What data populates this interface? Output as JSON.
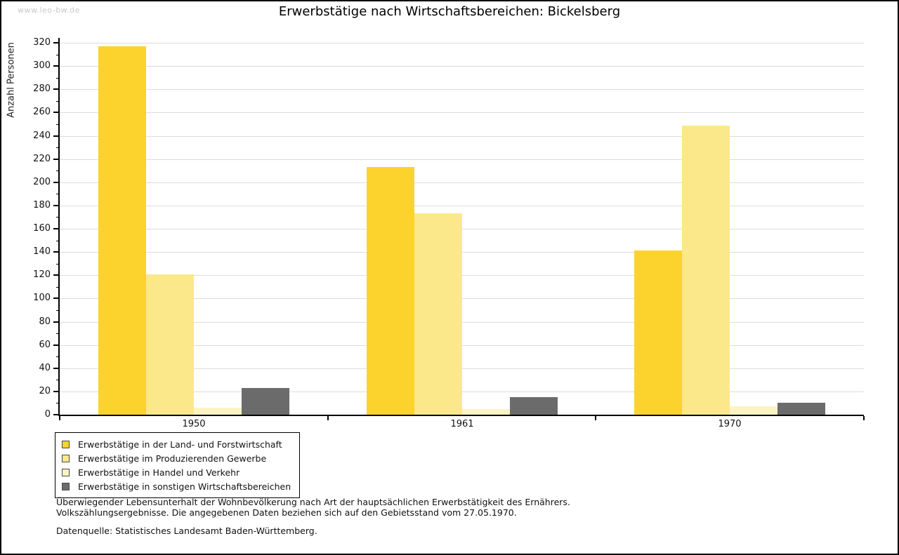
{
  "watermark": "www.leo-bw.de",
  "title": "Erwerbstätige nach Wirtschaftsbereichen: Bickelsberg",
  "chart_data": {
    "type": "bar",
    "title": "Erwerbstätige nach Wirtschaftsbereichen: Bickelsberg",
    "xlabel": "",
    "ylabel": "Anzahl Personen",
    "categories": [
      "1950",
      "1961",
      "1970"
    ],
    "series": [
      {
        "key": "land-und-forstwirtschaft",
        "name": "Erwerbstätige in der Land- und Forstwirtschaft",
        "color": "#FCD32D",
        "values": [
          317,
          213,
          141
        ]
      },
      {
        "key": "produzierendes-gewerbe",
        "name": "Erwerbstätige im Produzierenden Gewerbe",
        "color": "#FBE88B",
        "values": [
          121,
          173,
          249
        ]
      },
      {
        "key": "handel-und-verkehr",
        "name": "Erwerbstätige in Handel und Verkehr",
        "color": "#FCF3C5",
        "values": [
          6,
          5,
          7
        ]
      },
      {
        "key": "sonstige-wirtschaftsbereiche",
        "name": "Erwerbstätige in sonstigen Wirtschaftsbereichen",
        "color": "#6B6B6B",
        "values": [
          23,
          15,
          10
        ]
      }
    ],
    "ylim": [
      0,
      320
    ],
    "ytick_step": 20,
    "minor_tick_step": 10,
    "grid": true,
    "legend_position": "bottom-left"
  },
  "colors": {
    "grid": "#dcdcdc",
    "axis": "#000000",
    "watermark": "#c9c9c9",
    "background": "#ffffff"
  },
  "footnotes": {
    "line1": "Überwiegender Lebensunterhalt der Wohnbevölkerung nach Art der hauptsächlichen Erwerbstätigkeit des Ernährers.",
    "line2": "Volkszählungsergebnisse. Die angegebenen Daten beziehen sich auf den Gebietsstand vom 27.05.1970.",
    "source": "Datenquelle: Statistisches Landesamt Baden-Württemberg."
  }
}
